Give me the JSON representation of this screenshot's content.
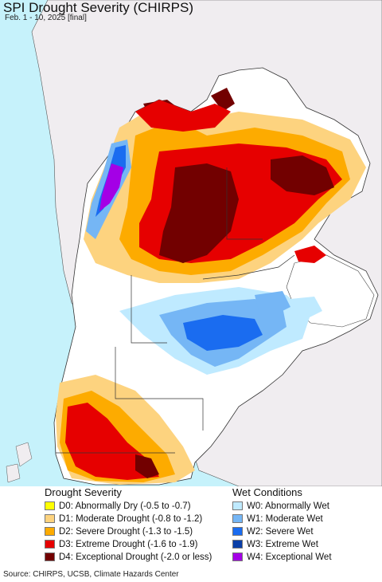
{
  "title": "SPI Drought Severity (CHIRPS)",
  "subtitle": "Feb. 1 - 10, 2025 [final]",
  "colors": {
    "ocean": "#c6f2fb",
    "land_outside": "#f0edf0",
    "no_drought": "#ffffff",
    "d0": "#ffff00",
    "d1": "#fdd37f",
    "d2": "#fdab00",
    "d3": "#e60000",
    "d4": "#720000",
    "w0": "#bfeaff",
    "w1": "#75b6f5",
    "w2": "#1a6cf0",
    "w3": "#0a3fa8",
    "w4": "#a400e6"
  },
  "legend": {
    "drought_heading": "Drought Severity",
    "wet_heading": "Wet Conditions",
    "drought_items": [
      {
        "label": "D0: Abnormally Dry (-0.5 to -0.7)",
        "color": "#ffff00"
      },
      {
        "label": "D1: Moderate Drought (-0.8 to -1.2)",
        "color": "#fdd37f"
      },
      {
        "label": "D2: Severe Drought (-1.3 to -1.5)",
        "color": "#fdab00"
      },
      {
        "label": "D3: Extreme Drought (-1.6 to -1.9)",
        "color": "#e60000"
      },
      {
        "label": "D4: Exceptional Drought (-2.0 or less)",
        "color": "#720000"
      }
    ],
    "wet_items": [
      {
        "label": "W0: Abnormally Wet",
        "color": "#bfeaff"
      },
      {
        "label": "W1: Moderate Wet",
        "color": "#75b6f5"
      },
      {
        "label": "W2: Severe Wet",
        "color": "#1a6cf0"
      },
      {
        "label": "W3: Extreme Wet",
        "color": "#0a3fa8"
      },
      {
        "label": "W4: Exceptional Wet",
        "color": "#a400e6"
      }
    ]
  },
  "source": "Source: CHIRPS, UCSB, Climate Hazards Center"
}
